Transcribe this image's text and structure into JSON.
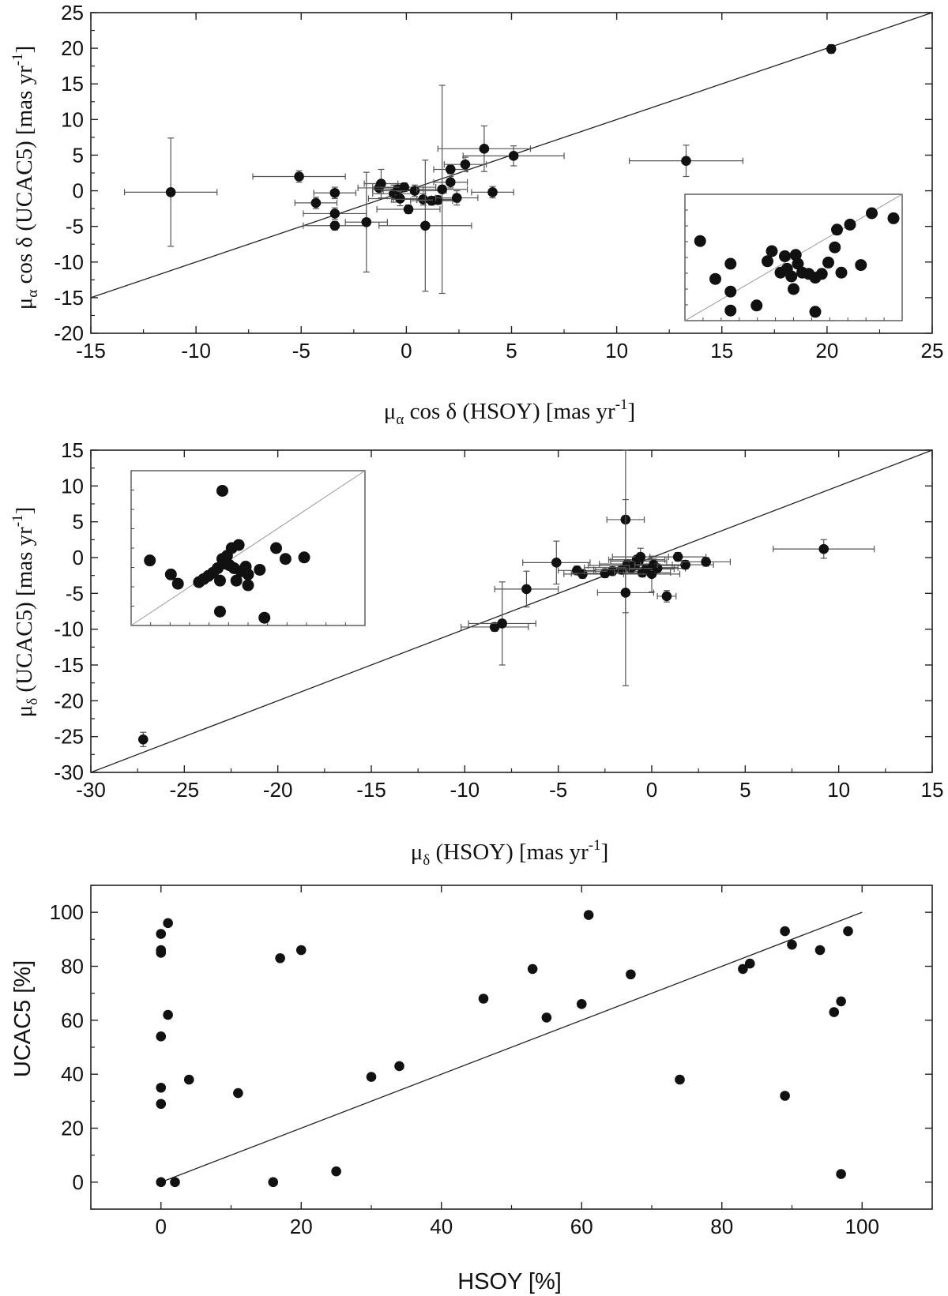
{
  "chart_data": [
    {
      "type": "scatter",
      "title": "",
      "xlabel": {
        "mu": "μ",
        "sub": "α",
        "text": " cos δ (HSOY) [mas yr",
        "sup": "-1",
        "close": "]"
      },
      "ylabel": {
        "mu": "μ",
        "sub": "α",
        "text": " cos δ (UCAC5) [mas yr",
        "sup": "-1",
        "close": "]"
      },
      "xlim": [
        -15,
        25
      ],
      "ylim": [
        -20,
        25
      ],
      "xticks": [
        "-15",
        "-10",
        "-5",
        "0",
        "5",
        "10",
        "15",
        "20",
        "25"
      ],
      "yticks": [
        "-20",
        "-15",
        "-10",
        "-5",
        "0",
        "5",
        "10",
        "15",
        "20",
        "25"
      ],
      "reference_line": {
        "x": [
          -15,
          25
        ],
        "y": [
          -15,
          25
        ]
      },
      "points": [
        {
          "x": -11.2,
          "y": -0.2,
          "xerr": 2.2,
          "yerr": 7.6
        },
        {
          "x": -5.1,
          "y": 2.0,
          "xerr": 2.2,
          "yerr": 0.8
        },
        {
          "x": -4.3,
          "y": -1.7,
          "xerr": 1.0,
          "yerr": 0.8
        },
        {
          "x": -3.4,
          "y": -0.3,
          "xerr": 1.0,
          "yerr": 0.8
        },
        {
          "x": -3.4,
          "y": -3.2,
          "xerr": 1.5,
          "yerr": 0.8
        },
        {
          "x": -3.4,
          "y": -4.9,
          "xerr": 1.5,
          "yerr": 0.6
        },
        {
          "x": -1.9,
          "y": -4.4,
          "xerr": 1.0,
          "yerr": 7.0
        },
        {
          "x": -1.3,
          "y": 0.4,
          "xerr": 1.0,
          "yerr": 0.8
        },
        {
          "x": -1.2,
          "y": 1.0,
          "xerr": 0.8,
          "yerr": 2.0
        },
        {
          "x": -0.6,
          "y": -0.4,
          "xerr": 1.0,
          "yerr": 1.2
        },
        {
          "x": -0.4,
          "y": 0.2,
          "xerr": 1.2,
          "yerr": 0.8
        },
        {
          "x": -0.3,
          "y": -1.1,
          "xerr": 1.5,
          "yerr": 1.0
        },
        {
          "x": -0.1,
          "y": 0.5,
          "xerr": 1.5,
          "yerr": 0.6
        },
        {
          "x": 0.1,
          "y": -2.6,
          "xerr": 1.5,
          "yerr": 0.6
        },
        {
          "x": 0.4,
          "y": 0.0,
          "xerr": 1.5,
          "yerr": 0.8
        },
        {
          "x": 0.8,
          "y": -1.2,
          "xerr": 1.5,
          "yerr": 0.8
        },
        {
          "x": 0.9,
          "y": -4.9,
          "xerr": 2.2,
          "yerr": 9.2
        },
        {
          "x": 1.2,
          "y": -1.4,
          "xerr": 1.0,
          "yerr": 0.6
        },
        {
          "x": 1.5,
          "y": -1.3,
          "xerr": 1.0,
          "yerr": 0.6
        },
        {
          "x": 1.7,
          "y": 0.2,
          "xerr": 1.2,
          "yerr": 14.6
        },
        {
          "x": 2.1,
          "y": 1.2,
          "xerr": 0.8,
          "yerr": 0.8
        },
        {
          "x": 2.1,
          "y": 3.0,
          "xerr": 0.8,
          "yerr": 0.6
        },
        {
          "x": 2.4,
          "y": -1.0,
          "xerr": 1.0,
          "yerr": 1.0
        },
        {
          "x": 2.8,
          "y": 3.7,
          "xerr": 1.0,
          "yerr": 1.0
        },
        {
          "x": 3.7,
          "y": 5.9,
          "xerr": 2.2,
          "yerr": 3.2
        },
        {
          "x": 4.1,
          "y": -0.2,
          "xerr": 1.0,
          "yerr": 0.8
        },
        {
          "x": 5.1,
          "y": 4.9,
          "xerr": 2.4,
          "yerr": 1.4
        },
        {
          "x": 13.3,
          "y": 4.2,
          "xerr": 2.7,
          "yerr": 2.2
        },
        {
          "x": 20.2,
          "y": 19.9,
          "xerr": 0.1,
          "yerr": 0.6
        }
      ],
      "inset": {
        "legend_placement": "lower-right",
        "points": [
          {
            "x": 0.07,
            "y": 0.63
          },
          {
            "x": 0.14,
            "y": 0.33
          },
          {
            "x": 0.21,
            "y": 0.23
          },
          {
            "x": 0.21,
            "y": 0.45
          },
          {
            "x": 0.21,
            "y": 0.08
          },
          {
            "x": 0.33,
            "y": 0.12
          },
          {
            "x": 0.38,
            "y": 0.47
          },
          {
            "x": 0.4,
            "y": 0.55
          },
          {
            "x": 0.44,
            "y": 0.38
          },
          {
            "x": 0.46,
            "y": 0.51
          },
          {
            "x": 0.47,
            "y": 0.41
          },
          {
            "x": 0.49,
            "y": 0.35
          },
          {
            "x": 0.5,
            "y": 0.25
          },
          {
            "x": 0.51,
            "y": 0.52
          },
          {
            "x": 0.52,
            "y": 0.45
          },
          {
            "x": 0.54,
            "y": 0.38
          },
          {
            "x": 0.57,
            "y": 0.37
          },
          {
            "x": 0.6,
            "y": 0.34
          },
          {
            "x": 0.6,
            "y": 0.07
          },
          {
            "x": 0.63,
            "y": 0.37
          },
          {
            "x": 0.66,
            "y": 0.46
          },
          {
            "x": 0.69,
            "y": 0.58
          },
          {
            "x": 0.7,
            "y": 0.72
          },
          {
            "x": 0.72,
            "y": 0.38
          },
          {
            "x": 0.76,
            "y": 0.76
          },
          {
            "x": 0.81,
            "y": 0.44
          },
          {
            "x": 0.86,
            "y": 0.85
          },
          {
            "x": 0.96,
            "y": 0.81
          }
        ]
      }
    },
    {
      "type": "scatter",
      "title": "",
      "xlabel": {
        "mu": "μ",
        "sub": "δ",
        "text": " (HSOY) [mas yr",
        "sup": "-1",
        "close": "]"
      },
      "ylabel": {
        "mu": "μ",
        "sub": "δ",
        "text": " (UCAC5) [mas yr",
        "sup": "-1",
        "close": "]"
      },
      "xlim": [
        -30,
        15
      ],
      "ylim": [
        -30,
        15
      ],
      "xticks": [
        "-30",
        "-25",
        "-20",
        "-15",
        "-10",
        "-5",
        "0",
        "5",
        "10",
        "15"
      ],
      "yticks": [
        "-30",
        "-25",
        "-20",
        "-15",
        "-10",
        "-5",
        "0",
        "5",
        "10",
        "15"
      ],
      "reference_line": {
        "x": [
          -30,
          15
        ],
        "y": [
          -30,
          15
        ]
      },
      "points": [
        {
          "x": -27.2,
          "y": -25.4,
          "xerr": 0.1,
          "yerr": 1.0
        },
        {
          "x": -8.4,
          "y": -9.7,
          "xerr": 1.8,
          "yerr": 0.6
        },
        {
          "x": -8.0,
          "y": -9.2,
          "xerr": 1.8,
          "yerr": 5.8
        },
        {
          "x": -6.7,
          "y": -4.4,
          "xerr": 1.7,
          "yerr": 2.5
        },
        {
          "x": -5.1,
          "y": -0.7,
          "xerr": 1.8,
          "yerr": 3.0
        },
        {
          "x": -4.0,
          "y": -1.8,
          "xerr": 1.0,
          "yerr": 0.6
        },
        {
          "x": -3.7,
          "y": -2.3,
          "xerr": 1.0,
          "yerr": 0.6
        },
        {
          "x": -2.5,
          "y": -2.2,
          "xerr": 1.8,
          "yerr": 0.6
        },
        {
          "x": -2.1,
          "y": -1.9,
          "xerr": 1.5,
          "yerr": 0.6
        },
        {
          "x": -1.6,
          "y": -1.7,
          "xerr": 1.5,
          "yerr": 0.6
        },
        {
          "x": -1.4,
          "y": 5.3,
          "xerr": 1.0,
          "yerr": 13.0
        },
        {
          "x": -1.4,
          "y": -4.9,
          "xerr": 1.5,
          "yerr": 13.0
        },
        {
          "x": -1.3,
          "y": -0.9,
          "xerr": 1.5,
          "yerr": 0.6
        },
        {
          "x": -1.1,
          "y": -1.4,
          "xerr": 2.5,
          "yerr": 0.6
        },
        {
          "x": -0.9,
          "y": -1.1,
          "xerr": 2.5,
          "yerr": 0.6
        },
        {
          "x": -0.8,
          "y": -0.3,
          "xerr": 1.5,
          "yerr": 0.6
        },
        {
          "x": -0.7,
          "y": -0.5,
          "xerr": 1.5,
          "yerr": 0.6
        },
        {
          "x": -0.6,
          "y": 0.1,
          "xerr": 1.5,
          "yerr": 1.2
        },
        {
          "x": -0.5,
          "y": -2.1,
          "xerr": 1.5,
          "yerr": 0.6
        },
        {
          "x": -0.3,
          "y": -1.6,
          "xerr": 1.5,
          "yerr": 0.6
        },
        {
          "x": 0.0,
          "y": -2.3,
          "xerr": 1.5,
          "yerr": 2.5
        },
        {
          "x": 0.1,
          "y": -1.0,
          "xerr": 1.0,
          "yerr": 0.8
        },
        {
          "x": 0.3,
          "y": -1.5,
          "xerr": 1.5,
          "yerr": 0.6
        },
        {
          "x": 0.8,
          "y": -5.4,
          "xerr": 0.5,
          "yerr": 0.8
        },
        {
          "x": 1.4,
          "y": 0.1,
          "xerr": 1.5,
          "yerr": 0.6
        },
        {
          "x": 1.8,
          "y": -1.0,
          "xerr": 1.5,
          "yerr": 0.6
        },
        {
          "x": 2.9,
          "y": -0.6,
          "xerr": 1.3,
          "yerr": 0.6
        },
        {
          "x": 9.2,
          "y": 1.2,
          "xerr": 2.7,
          "yerr": 1.3
        }
      ],
      "inset": {
        "legend_placement": "upper-left",
        "points": [
          {
            "x": 0.08,
            "y": 0.42
          },
          {
            "x": 0.17,
            "y": 0.33
          },
          {
            "x": 0.2,
            "y": 0.27
          },
          {
            "x": 0.29,
            "y": 0.28
          },
          {
            "x": 0.31,
            "y": 0.3
          },
          {
            "x": 0.33,
            "y": 0.32
          },
          {
            "x": 0.35,
            "y": 0.34
          },
          {
            "x": 0.37,
            "y": 0.37
          },
          {
            "x": 0.38,
            "y": 0.29
          },
          {
            "x": 0.39,
            "y": 0.43
          },
          {
            "x": 0.38,
            "y": 0.09
          },
          {
            "x": 0.39,
            "y": 0.87
          },
          {
            "x": 0.4,
            "y": 0.4
          },
          {
            "x": 0.41,
            "y": 0.45
          },
          {
            "x": 0.42,
            "y": 0.39
          },
          {
            "x": 0.43,
            "y": 0.5
          },
          {
            "x": 0.44,
            "y": 0.37
          },
          {
            "x": 0.46,
            "y": 0.52
          },
          {
            "x": 0.45,
            "y": 0.29
          },
          {
            "x": 0.47,
            "y": 0.35
          },
          {
            "x": 0.49,
            "y": 0.38
          },
          {
            "x": 0.5,
            "y": 0.33
          },
          {
            "x": 0.5,
            "y": 0.26
          },
          {
            "x": 0.55,
            "y": 0.36
          },
          {
            "x": 0.57,
            "y": 0.05
          },
          {
            "x": 0.62,
            "y": 0.5
          },
          {
            "x": 0.66,
            "y": 0.43
          },
          {
            "x": 0.74,
            "y": 0.44
          }
        ]
      }
    },
    {
      "type": "scatter",
      "title": "",
      "xlabel": "HSOY [%]",
      "ylabel": "UCAC5 [%]",
      "xlim": [
        -10,
        110
      ],
      "ylim": [
        -10,
        110
      ],
      "xticks": [
        "0",
        "20",
        "40",
        "60",
        "80",
        "100"
      ],
      "yticks": [
        "0",
        "20",
        "40",
        "60",
        "80",
        "100"
      ],
      "reference_line": {
        "x": [
          0,
          100
        ],
        "y": [
          0,
          100
        ]
      },
      "points": [
        {
          "x": 0,
          "y": 0
        },
        {
          "x": 0,
          "y": 29
        },
        {
          "x": 0,
          "y": 35
        },
        {
          "x": 0,
          "y": 54
        },
        {
          "x": 0,
          "y": 85
        },
        {
          "x": 0,
          "y": 86
        },
        {
          "x": 0,
          "y": 92
        },
        {
          "x": 1,
          "y": 62
        },
        {
          "x": 1,
          "y": 96
        },
        {
          "x": 2,
          "y": 0
        },
        {
          "x": 4,
          "y": 38
        },
        {
          "x": 11,
          "y": 33
        },
        {
          "x": 16,
          "y": 0
        },
        {
          "x": 17,
          "y": 83
        },
        {
          "x": 20,
          "y": 86
        },
        {
          "x": 25,
          "y": 4
        },
        {
          "x": 30,
          "y": 39
        },
        {
          "x": 34,
          "y": 43
        },
        {
          "x": 46,
          "y": 68
        },
        {
          "x": 53,
          "y": 79
        },
        {
          "x": 55,
          "y": 61
        },
        {
          "x": 60,
          "y": 66
        },
        {
          "x": 61,
          "y": 99
        },
        {
          "x": 67,
          "y": 77
        },
        {
          "x": 74,
          "y": 38
        },
        {
          "x": 83,
          "y": 79
        },
        {
          "x": 84,
          "y": 81
        },
        {
          "x": 89,
          "y": 93
        },
        {
          "x": 89,
          "y": 32
        },
        {
          "x": 90,
          "y": 88
        },
        {
          "x": 94,
          "y": 86
        },
        {
          "x": 96,
          "y": 63
        },
        {
          "x": 97,
          "y": 67
        },
        {
          "x": 97,
          "y": 3
        },
        {
          "x": 98,
          "y": 93
        }
      ]
    }
  ]
}
